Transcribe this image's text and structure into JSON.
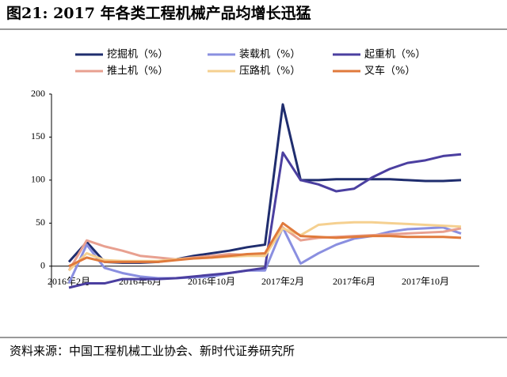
{
  "chart_data": {
    "type": "line",
    "title": "图21:    2017 年各类工程机械产品均增长迅猛",
    "source": "资料来源：中国工程机械工业协会、新时代证券研究所",
    "categories": [
      "2016年2月",
      null,
      null,
      null,
      "2016年6月",
      null,
      null,
      null,
      "2016年10月",
      null,
      null,
      null,
      "2017年2月",
      null,
      null,
      null,
      "2017年6月",
      null,
      null,
      null,
      "2017年10月",
      null,
      null
    ],
    "ylim": [
      -25,
      200
    ],
    "yticks": [
      0,
      50,
      100,
      150,
      200
    ],
    "series": [
      {
        "name": "挖掘机（%）",
        "color": "#1f2d6e",
        "values": [
          5,
          28,
          5,
          4,
          4,
          5,
          8,
          12,
          15,
          18,
          22,
          25,
          188,
          100,
          100,
          101,
          101,
          101,
          101,
          100,
          99,
          99,
          100
        ]
      },
      {
        "name": "装载机（%）",
        "color": "#8a8fe0",
        "values": [
          -20,
          25,
          -2,
          -8,
          -12,
          -14,
          -14,
          -13,
          -12,
          -8,
          -5,
          -5,
          45,
          3,
          15,
          25,
          32,
          35,
          40,
          43,
          44,
          45,
          38
        ]
      },
      {
        "name": "起重机（%）",
        "color": "#4b3fa0",
        "values": [
          -25,
          -20,
          -20,
          -15,
          -15,
          -15,
          -14,
          -12,
          -10,
          -8,
          -5,
          -2,
          132,
          100,
          95,
          87,
          90,
          103,
          113,
          120,
          123,
          128,
          130
        ]
      },
      {
        "name": "推土机（%）",
        "color": "#e8a090",
        "values": [
          -5,
          30,
          23,
          18,
          12,
          10,
          8,
          10,
          12,
          14,
          13,
          12,
          45,
          30,
          33,
          34,
          35,
          36,
          37,
          38,
          39,
          40,
          44
        ]
      },
      {
        "name": "压路机（%）",
        "color": "#f5d090",
        "values": [
          -5,
          15,
          7,
          6,
          6,
          6,
          8,
          9,
          10,
          11,
          12,
          12,
          44,
          36,
          48,
          50,
          51,
          51,
          50,
          49,
          48,
          47,
          46
        ]
      },
      {
        "name": "叉车（%）",
        "color": "#e07a3c",
        "values": [
          0,
          10,
          5,
          5,
          5,
          5,
          7,
          9,
          10,
          12,
          14,
          15,
          50,
          35,
          34,
          33,
          34,
          35,
          35,
          34,
          34,
          34,
          33
        ]
      }
    ]
  }
}
